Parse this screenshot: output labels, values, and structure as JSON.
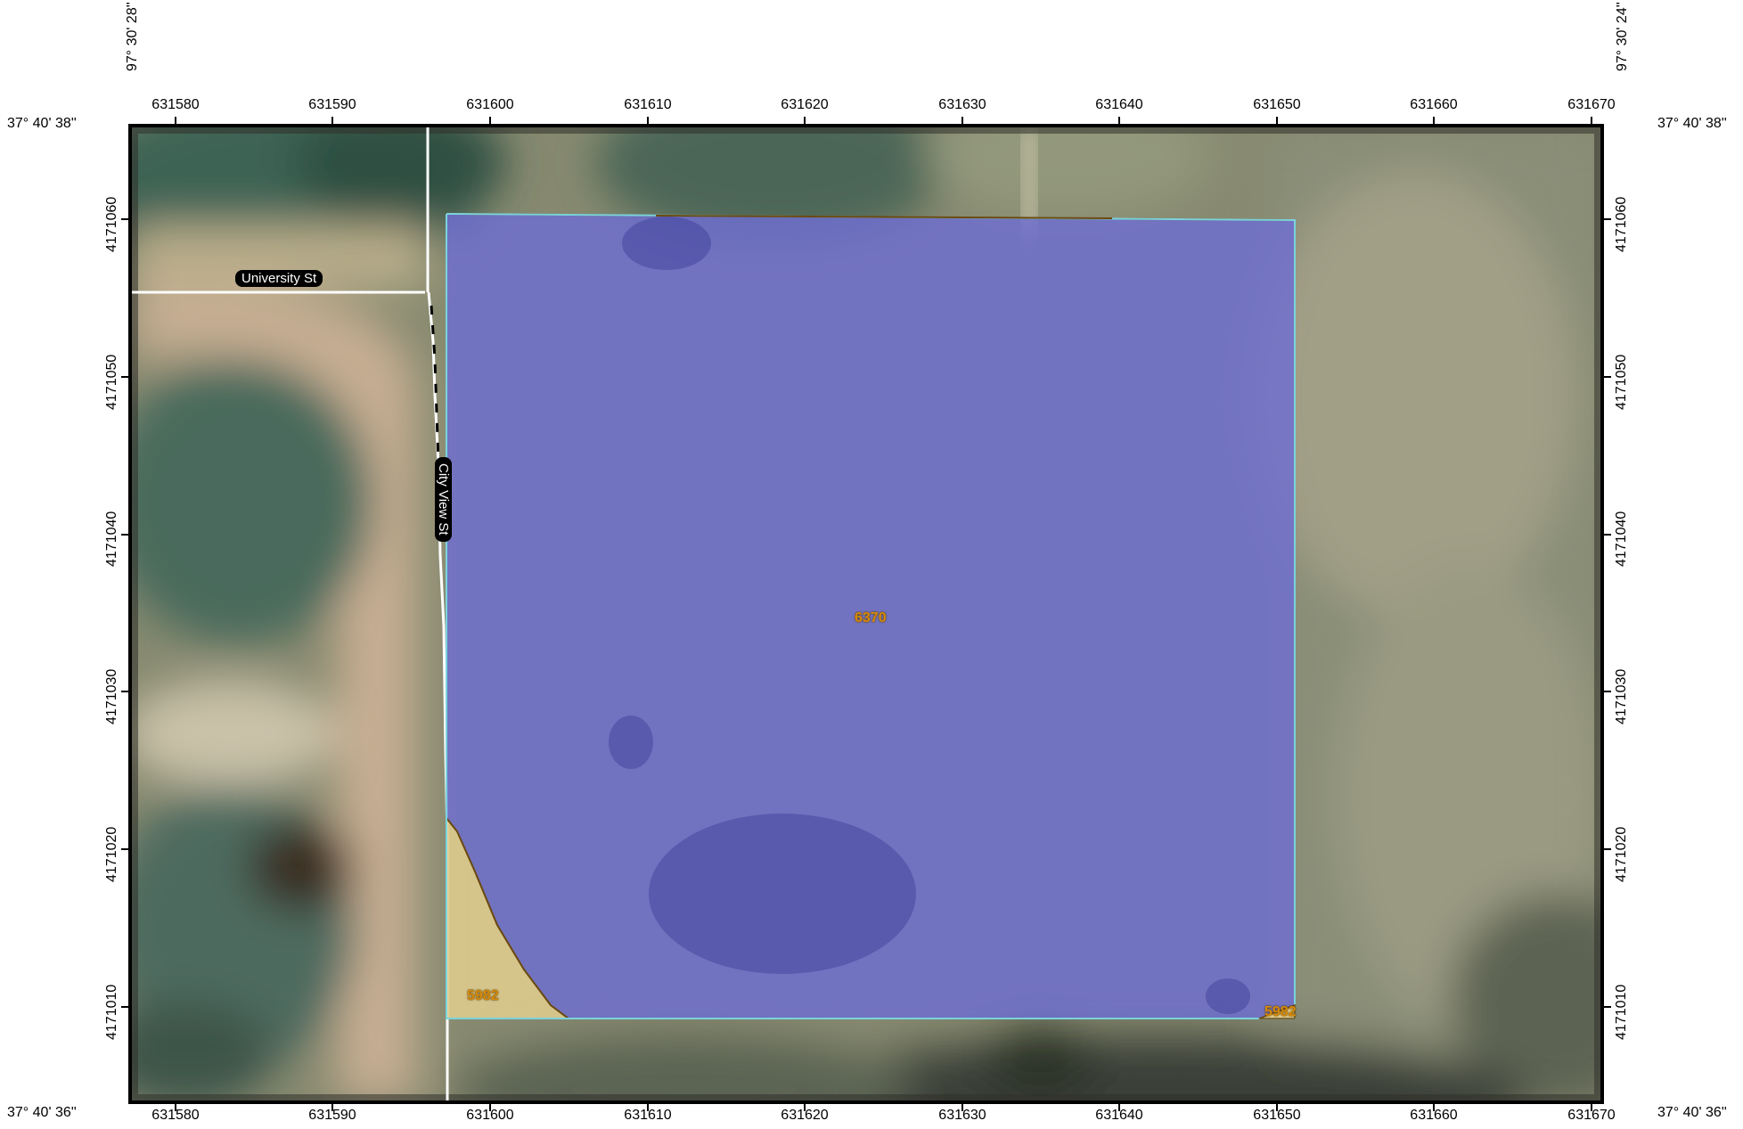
{
  "map": {
    "top_axis_labels": [
      "631580",
      "631590",
      "631600",
      "631610",
      "631620",
      "631630",
      "631640",
      "631650",
      "631660",
      "631670"
    ],
    "bottom_axis_labels": [
      "631580",
      "631590",
      "631600",
      "631610",
      "631620",
      "631630",
      "631640",
      "631650",
      "631660",
      "631670"
    ],
    "left_axis_labels": [
      "4171060",
      "4171050",
      "4171040",
      "4171030",
      "4171020",
      "4171010"
    ],
    "right_axis_labels": [
      "4171060",
      "4171050",
      "4171040",
      "4171030",
      "4171020",
      "4171010"
    ],
    "lat_top": "37° 40' 38''",
    "lat_bottom": "37° 40' 36''",
    "lon_left": "97° 30' 28''",
    "lon_right": "97° 30' 24''",
    "roads": {
      "university": "University St",
      "city_view": "City View St"
    },
    "parcels": {
      "main": "6370",
      "small_left": "5982",
      "small_right": "5982"
    },
    "colors": {
      "parcel_fill": "#6e6ed2",
      "parcel_outline": "#7ad3dc",
      "small_parcel_fill": "#e3cf8e",
      "label_color": "#d78a0a"
    }
  }
}
